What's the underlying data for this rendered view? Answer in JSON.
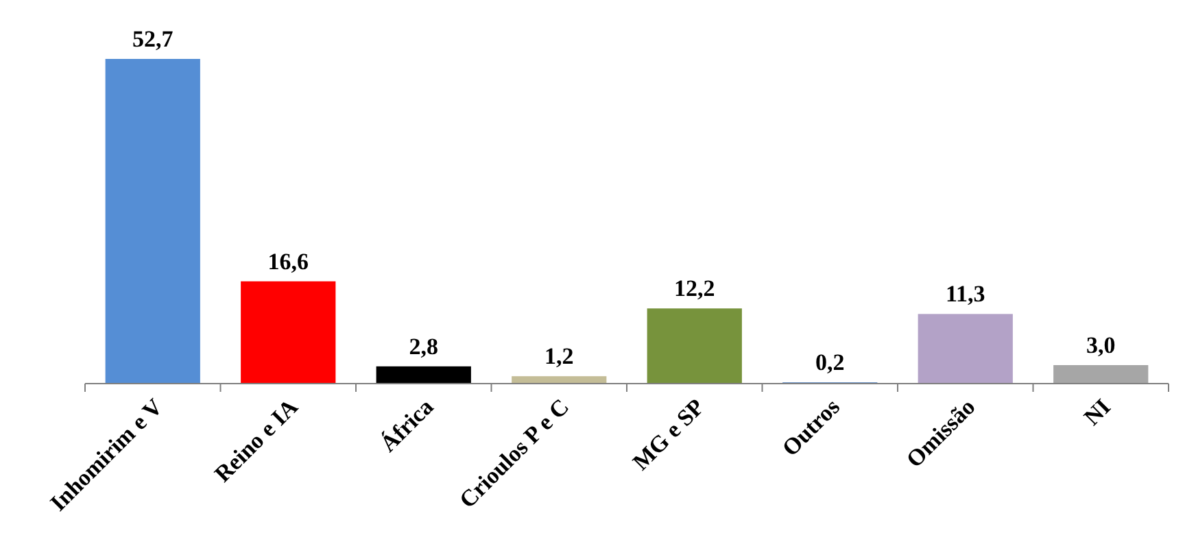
{
  "chart_data": {
    "type": "bar",
    "categories": [
      "Inhomirim e V",
      "Reino e IA",
      "África",
      "Crioulos P e C",
      "MG e SP",
      "Outros",
      "Omissão",
      "NI"
    ],
    "values": [
      52.7,
      16.6,
      2.8,
      1.2,
      12.2,
      0.2,
      11.3,
      3.0
    ],
    "colors": [
      "#558ed5",
      "#ff0000",
      "#000000",
      "#c4bd97",
      "#77933c",
      "#4f81bd",
      "#b3a2c7",
      "#a6a6a6"
    ],
    "value_labels": [
      "52,7",
      "16,6",
      "2,8",
      "1,2",
      "12,2",
      "0,2",
      "11,3",
      "3,0"
    ]
  }
}
